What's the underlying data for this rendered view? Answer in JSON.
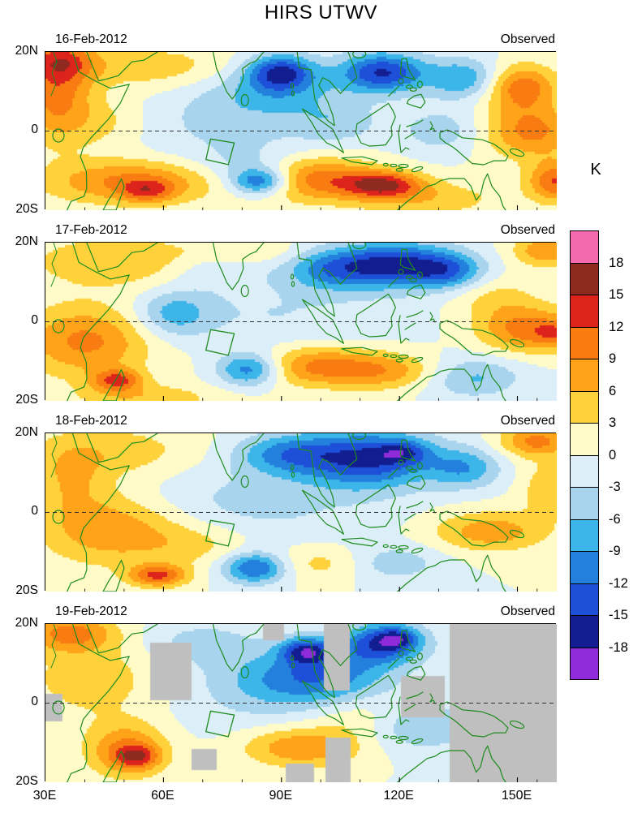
{
  "title": "HIRS UTWV",
  "colorbar": {
    "label": "K",
    "tick_labels": [
      "18",
      "15",
      "12",
      "9",
      "6",
      "3",
      "0",
      "-3",
      "-6",
      "-9",
      "-12",
      "-15",
      "-18"
    ]
  },
  "axes": {
    "x_tick_labels": [
      "30E",
      "60E",
      "90E",
      "120E",
      "150E"
    ],
    "x_tick_lons": [
      30,
      60,
      90,
      120,
      150
    ],
    "y_tick_labels": [
      "20N",
      "0",
      "20S"
    ],
    "lon_range": [
      30,
      160
    ],
    "lat_range": [
      -20,
      20
    ]
  },
  "chart_data": {
    "type": "heatmap",
    "title": "HIRS UTWV",
    "subtitle": "Filled-contour anomaly maps, one per day, all labeled Observed",
    "units": "K",
    "x_range_lon": [
      30,
      160
    ],
    "y_range_lat": [
      -20,
      20
    ],
    "levels": [
      -18,
      -15,
      -12,
      -9,
      -6,
      -3,
      0,
      3,
      6,
      9,
      12,
      15,
      18
    ],
    "palette_low_to_high": [
      "#8F2BD8",
      "#121D8F",
      "#1E4FD8",
      "#2380DC",
      "#3CB5E9",
      "#A9D4EE",
      "#DCEFF8",
      "#FFFBC8",
      "#FFD23C",
      "#FFA319",
      "#F87C12",
      "#DC231C",
      "#8E2A20",
      "#F569AE"
    ],
    "missing_color": "#BFBFBF",
    "coast_color": "#1E8B1E",
    "gaussian_format": "[x_frac_of_width, y_frac_of_height(top=20N), sigma_x_frac, sigma_y_frac, amplitude_K]",
    "panels": [
      {
        "date": "16-Feb-2012",
        "label": "Observed",
        "gaussians": [
          [
            0.02,
            0.28,
            0.05,
            0.2,
            10
          ],
          [
            0.03,
            0.05,
            0.05,
            0.09,
            9
          ],
          [
            0.22,
            0.1,
            0.12,
            0.1,
            5
          ],
          [
            0.17,
            0.82,
            0.12,
            0.1,
            10
          ],
          [
            0.2,
            0.88,
            0.035,
            0.05,
            7
          ],
          [
            0.52,
            0.8,
            0.09,
            0.1,
            11
          ],
          [
            0.66,
            0.84,
            0.055,
            0.06,
            13
          ],
          [
            0.95,
            0.5,
            0.07,
            0.12,
            10
          ],
          [
            1.0,
            0.82,
            0.04,
            0.09,
            12
          ],
          [
            0.93,
            0.22,
            0.05,
            0.1,
            11
          ],
          [
            0.46,
            0.13,
            0.045,
            0.08,
            -14
          ],
          [
            0.44,
            0.25,
            0.1,
            0.13,
            -6
          ],
          [
            0.66,
            0.13,
            0.06,
            0.09,
            -15
          ],
          [
            0.82,
            0.17,
            0.05,
            0.09,
            -9
          ],
          [
            0.42,
            0.82,
            0.04,
            0.06,
            -13
          ],
          [
            0.4,
            0.74,
            0.07,
            0.1,
            -5
          ],
          [
            0.78,
            0.5,
            0.06,
            0.1,
            -5
          ],
          [
            0.33,
            0.48,
            0.15,
            0.18,
            -3
          ],
          [
            0.57,
            0.45,
            0.06,
            0.1,
            -4
          ],
          [
            0.12,
            0.45,
            0.06,
            0.12,
            4
          ],
          [
            0.75,
            0.93,
            0.1,
            0.08,
            5
          ]
        ],
        "missing_rects": []
      },
      {
        "date": "17-Feb-2012",
        "label": "Observed",
        "gaussians": [
          [
            0.08,
            0.62,
            0.09,
            0.16,
            10
          ],
          [
            0.14,
            0.87,
            0.035,
            0.05,
            11
          ],
          [
            0.15,
            0.12,
            0.13,
            0.12,
            6
          ],
          [
            0.38,
            0.06,
            0.08,
            0.06,
            4
          ],
          [
            0.53,
            0.78,
            0.1,
            0.09,
            10
          ],
          [
            0.68,
            0.82,
            0.08,
            0.08,
            6
          ],
          [
            0.95,
            0.55,
            0.07,
            0.1,
            11
          ],
          [
            1.0,
            0.58,
            0.025,
            0.05,
            5
          ],
          [
            0.98,
            0.05,
            0.045,
            0.07,
            9
          ],
          [
            0.88,
            0.35,
            0.06,
            0.1,
            4
          ],
          [
            0.68,
            0.14,
            0.08,
            0.1,
            -16
          ],
          [
            0.79,
            0.18,
            0.05,
            0.08,
            -9
          ],
          [
            0.55,
            0.17,
            0.06,
            0.09,
            -8
          ],
          [
            0.25,
            0.45,
            0.05,
            0.1,
            -7
          ],
          [
            0.4,
            0.8,
            0.045,
            0.075,
            -13
          ],
          [
            0.83,
            0.85,
            0.07,
            0.09,
            -7
          ],
          [
            0.45,
            0.45,
            0.18,
            0.18,
            -3
          ],
          [
            0.33,
            0.15,
            0.07,
            0.1,
            -4
          ],
          [
            0.2,
            0.98,
            0.1,
            0.06,
            5
          ]
        ],
        "missing_rects": []
      },
      {
        "date": "18-Feb-2012",
        "label": "Observed",
        "gaussians": [
          [
            0.13,
            0.6,
            0.1,
            0.16,
            9
          ],
          [
            0.22,
            0.9,
            0.04,
            0.05,
            12
          ],
          [
            0.13,
            0.12,
            0.12,
            0.12,
            5
          ],
          [
            0.96,
            0.05,
            0.05,
            0.07,
            10
          ],
          [
            0.87,
            0.62,
            0.08,
            0.09,
            8
          ],
          [
            0.99,
            0.35,
            0.04,
            0.12,
            6
          ],
          [
            0.55,
            0.82,
            0.08,
            0.08,
            5
          ],
          [
            0.63,
            0.16,
            0.09,
            0.13,
            -15
          ],
          [
            0.7,
            0.12,
            0.035,
            0.05,
            -7
          ],
          [
            0.47,
            0.13,
            0.07,
            0.09,
            -9
          ],
          [
            0.82,
            0.22,
            0.05,
            0.09,
            -8
          ],
          [
            0.41,
            0.85,
            0.045,
            0.07,
            -13
          ],
          [
            0.67,
            0.82,
            0.07,
            0.08,
            -6
          ],
          [
            0.38,
            0.45,
            0.18,
            0.18,
            -4
          ],
          [
            0.05,
            0.3,
            0.05,
            0.15,
            5
          ],
          [
            0.3,
            0.7,
            0.08,
            0.1,
            4
          ]
        ],
        "missing_rects": []
      },
      {
        "date": "19-Feb-2012",
        "label": "Observed",
        "gaussians": [
          [
            0.05,
            0.06,
            0.06,
            0.08,
            10
          ],
          [
            0.1,
            0.35,
            0.1,
            0.18,
            5
          ],
          [
            0.16,
            0.8,
            0.055,
            0.12,
            10
          ],
          [
            0.18,
            0.84,
            0.03,
            0.05,
            8
          ],
          [
            0.5,
            0.78,
            0.08,
            0.09,
            9
          ],
          [
            0.62,
            0.6,
            0.07,
            0.1,
            4
          ],
          [
            0.66,
            0.12,
            0.055,
            0.09,
            -14
          ],
          [
            0.69,
            0.09,
            0.028,
            0.045,
            -7
          ],
          [
            0.51,
            0.17,
            0.035,
            0.06,
            -13
          ],
          [
            0.49,
            0.35,
            0.09,
            0.12,
            -7
          ],
          [
            0.58,
            0.3,
            0.08,
            0.12,
            -5
          ],
          [
            0.72,
            0.65,
            0.07,
            0.1,
            -6
          ],
          [
            0.42,
            0.42,
            0.15,
            0.2,
            -3
          ],
          [
            0.3,
            0.12,
            0.08,
            0.1,
            -4
          ],
          [
            0.9,
            0.5,
            0.1,
            0.3,
            -2
          ]
        ],
        "missing_rects": [
          [
            0.79,
            0.0,
            0.21,
            1.0
          ],
          [
            0.545,
            0.0,
            0.05,
            0.42
          ],
          [
            0.548,
            0.72,
            0.048,
            0.28
          ],
          [
            0.205,
            0.12,
            0.08,
            0.36
          ],
          [
            0.285,
            0.79,
            0.048,
            0.13
          ],
          [
            0.695,
            0.33,
            0.085,
            0.26
          ],
          [
            0.0,
            0.44,
            0.032,
            0.17
          ],
          [
            0.47,
            0.88,
            0.055,
            0.12
          ],
          [
            0.425,
            0.0,
            0.04,
            0.1
          ]
        ]
      }
    ]
  }
}
